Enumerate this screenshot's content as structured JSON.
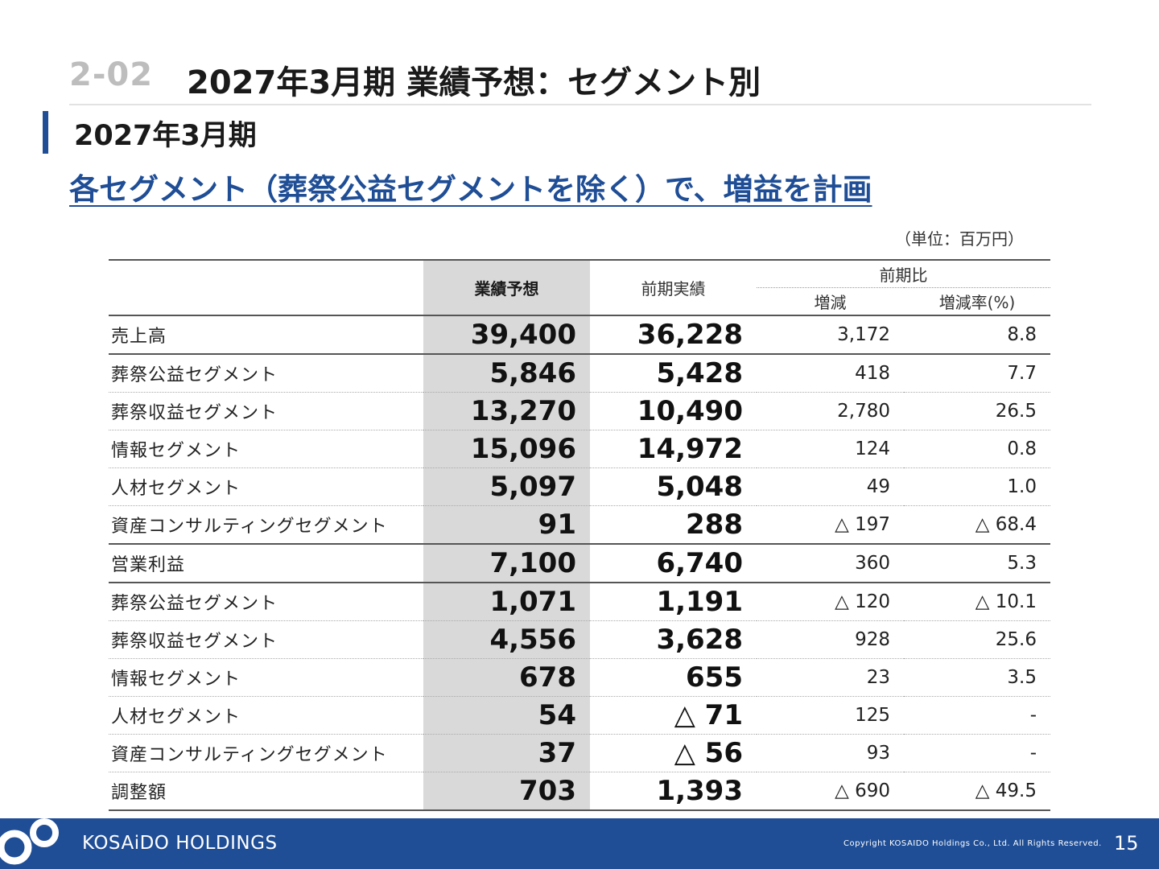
{
  "header": {
    "section_number": "2-02",
    "title": "2027年3月期 業績予想：セグメント別",
    "subtitle": "2027年3月期",
    "headline": "各セグメント（葬祭公益セグメントを除く）で、増益を計画",
    "unit_note": "（単位：百万円）"
  },
  "table": {
    "headers": {
      "forecast": "業績予想",
      "previous": "前期実績",
      "comparison": "前期比",
      "diff": "増減",
      "rate": "増減率(%)"
    },
    "rows": [
      {
        "name": "売上高",
        "forecast": "39,400",
        "previous": "36,228",
        "diff": "3,172",
        "rate": "8.8"
      },
      {
        "name": "葬祭公益セグメント",
        "forecast": "5,846",
        "previous": "5,428",
        "diff": "418",
        "rate": "7.7"
      },
      {
        "name": "葬祭収益セグメント",
        "forecast": "13,270",
        "previous": "10,490",
        "diff": "2,780",
        "rate": "26.5"
      },
      {
        "name": "情報セグメント",
        "forecast": "15,096",
        "previous": "14,972",
        "diff": "124",
        "rate": "0.8"
      },
      {
        "name": "人材セグメント",
        "forecast": "5,097",
        "previous": "5,048",
        "diff": "49",
        "rate": "1.0"
      },
      {
        "name": "資産コンサルティングセグメント",
        "forecast": "91",
        "previous": "288",
        "diff": "△ 197",
        "rate": "△ 68.4"
      },
      {
        "name": "営業利益",
        "forecast": "7,100",
        "previous": "6,740",
        "diff": "360",
        "rate": "5.3"
      },
      {
        "name": "葬祭公益セグメント",
        "forecast": "1,071",
        "previous": "1,191",
        "diff": "△ 120",
        "rate": "△ 10.1"
      },
      {
        "name": "葬祭収益セグメント",
        "forecast": "4,556",
        "previous": "3,628",
        "diff": "928",
        "rate": "25.6"
      },
      {
        "name": "情報セグメント",
        "forecast": "678",
        "previous": "655",
        "diff": "23",
        "rate": "3.5"
      },
      {
        "name": "人材セグメント",
        "forecast": "54",
        "previous": "△ 71",
        "diff": "125",
        "rate": "-"
      },
      {
        "name": "資産コンサルティングセグメント",
        "forecast": "37",
        "previous": "△ 56",
        "diff": "93",
        "rate": "-"
      },
      {
        "name": "調整額",
        "forecast": "703",
        "previous": "1,393",
        "diff": "△ 690",
        "rate": "△ 49.5"
      }
    ]
  },
  "footer": {
    "brand": "KOSAiDO HOLDINGS",
    "copyright": "Copyright  KOSAIDO Holdings Co., Ltd. All Rights Reserved.",
    "page_number": "15"
  },
  "colors": {
    "brand_blue": "#1f4e96",
    "forecast_column_bg": "#d9d9d9",
    "section_number_gray": "#bdbdbd"
  }
}
